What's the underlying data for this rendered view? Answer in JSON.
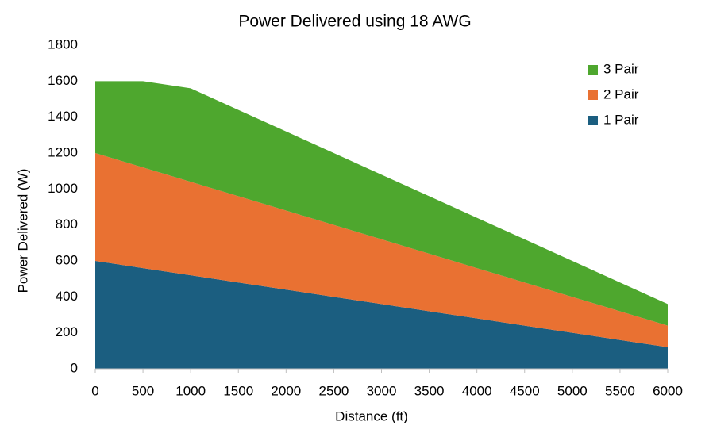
{
  "chart_data": {
    "type": "area",
    "stacked": true,
    "title": "Power Delivered using 18 AWG",
    "x_label": "Distance (ft)",
    "y_label": "Power Delivered (W)",
    "x": [
      0,
      500,
      1000,
      1500,
      2000,
      2500,
      3000,
      3500,
      4000,
      4500,
      5000,
      5500,
      6000
    ],
    "series": [
      {
        "name": "1 Pair",
        "color": "#1b5e80",
        "values": [
          600,
          560,
          520,
          480,
          440,
          400,
          360,
          320,
          280,
          240,
          200,
          160,
          120
        ]
      },
      {
        "name": "2 Pair",
        "color": "#e97132",
        "values": [
          600,
          560,
          520,
          480,
          440,
          400,
          360,
          320,
          280,
          240,
          200,
          160,
          120
        ]
      },
      {
        "name": "3 Pair",
        "color": "#4ea72e",
        "values": [
          400,
          480,
          520,
          480,
          440,
          400,
          360,
          320,
          280,
          240,
          200,
          160,
          120
        ]
      }
    ],
    "xlim": [
      0,
      6000
    ],
    "xticks": [
      0,
      500,
      1000,
      1500,
      2000,
      2500,
      3000,
      3500,
      4000,
      4500,
      5000,
      5500,
      6000
    ],
    "ylim": [
      0,
      1800
    ],
    "yticks": [
      0,
      200,
      400,
      600,
      800,
      1000,
      1200,
      1400,
      1600,
      1800
    ],
    "grid": false,
    "legend": "top-right"
  }
}
